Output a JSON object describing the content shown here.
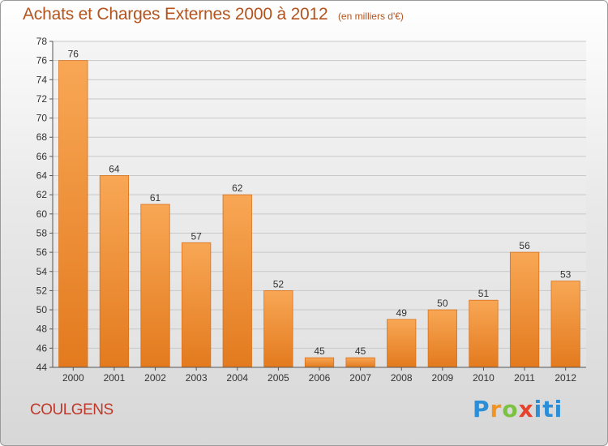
{
  "title": "Achats et Charges Externes 2000 à 2012",
  "subtitle": "(en milliers d'€)",
  "commune": "COULGENS",
  "brand": [
    "P",
    "r",
    "o",
    "x",
    "iti"
  ],
  "colors": {
    "bar": "#f28f2f",
    "bar_dark": "#e07820",
    "grid": "#c8c8c8",
    "text": "#333333",
    "title": "#b3541e"
  },
  "chart_data": {
    "type": "bar",
    "categories": [
      "2000",
      "2001",
      "2002",
      "2003",
      "2004",
      "2005",
      "2006",
      "2007",
      "2008",
      "2009",
      "2010",
      "2011",
      "2012"
    ],
    "values": [
      76,
      64,
      61,
      57,
      62,
      52,
      45,
      45,
      49,
      50,
      51,
      56,
      53
    ],
    "data_labels": [
      "76",
      "64",
      "61",
      "57",
      "62",
      "52",
      "45",
      "45",
      "49",
      "50",
      "51",
      "56",
      "53"
    ],
    "ylim": [
      44,
      78
    ],
    "yticks": [
      44,
      46,
      48,
      50,
      52,
      54,
      56,
      58,
      60,
      62,
      64,
      66,
      68,
      70,
      72,
      74,
      76,
      78
    ],
    "grid": true,
    "title": "Achats et Charges Externes 2000 à 2012",
    "xlabel": "",
    "ylabel": ""
  }
}
